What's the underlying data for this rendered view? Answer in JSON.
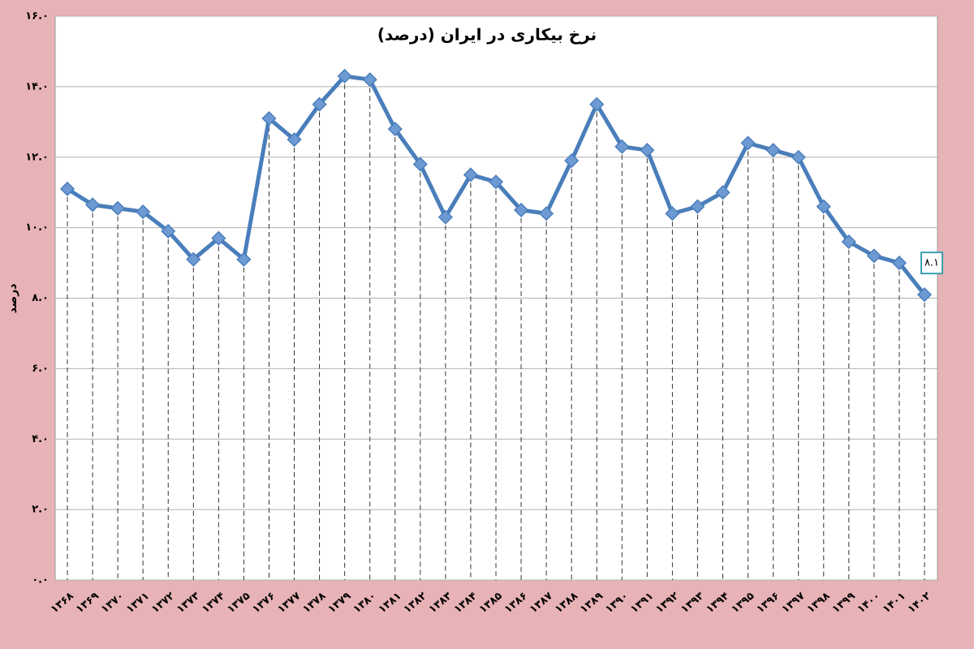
{
  "chart_data": {
    "type": "line",
    "title": "نرخ بیکاری در ایران (درصد)",
    "y_label": "درصد",
    "categories": [
      "۱۳۶۸",
      "۱۳۶۹",
      "۱۳۷۰",
      "۱۳۷۱",
      "۱۳۷۲",
      "۱۳۷۳",
      "۱۳۷۴",
      "۱۳۷۵",
      "۱۳۷۶",
      "۱۳۷۷",
      "۱۳۷۸",
      "۱۳۷۹",
      "۱۳۸۰",
      "۱۳۸۱",
      "۱۳۸۲",
      "۱۳۸۳",
      "۱۳۸۴",
      "۱۳۸۵",
      "۱۳۸۶",
      "۱۳۸۷",
      "۱۳۸۸",
      "۱۳۸۹",
      "۱۳۹۰",
      "۱۳۹۱",
      "۱۳۹۲",
      "۱۳۹۳",
      "۱۳۹۴",
      "۱۳۹۵",
      "۱۳۹۶",
      "۱۳۹۷",
      "۱۳۹۸",
      "۱۳۹۹",
      "۱۴۰۰",
      "۱۴۰۱",
      "۱۴۰۲"
    ],
    "values": [
      11.1,
      10.65,
      10.55,
      10.45,
      9.9,
      9.1,
      9.7,
      9.1,
      13.1,
      12.5,
      13.5,
      14.3,
      14.2,
      12.8,
      11.8,
      10.3,
      11.5,
      11.3,
      10.5,
      10.4,
      11.9,
      13.5,
      12.3,
      12.2,
      10.4,
      10.6,
      11.0,
      12.4,
      12.2,
      12.0,
      10.6,
      9.6,
      9.2,
      9.0,
      8.1
    ],
    "value_labels": [
      null,
      null,
      null,
      null,
      null,
      null,
      null,
      null,
      null,
      null,
      null,
      null,
      null,
      null,
      null,
      null,
      null,
      null,
      null,
      null,
      null,
      null,
      null,
      null,
      null,
      null,
      null,
      null,
      null,
      null,
      null,
      null,
      null,
      null,
      "۸.۱"
    ],
    "color": "#4a7ebb",
    "ylim": [
      0,
      16
    ],
    "yticks": [
      {
        "value": 0,
        "label": "۰.۰"
      },
      {
        "value": 2,
        "label": "۲.۰"
      },
      {
        "value": 4,
        "label": "۴.۰"
      },
      {
        "value": 6,
        "label": "۶.۰"
      },
      {
        "value": 8,
        "label": "۸.۰"
      },
      {
        "value": 10,
        "label": "۱۰.۰"
      },
      {
        "value": 12,
        "label": "۱۲.۰"
      },
      {
        "value": 14,
        "label": "۱۴.۰"
      },
      {
        "value": 16,
        "label": "۱۶.۰"
      }
    ],
    "grid": true
  }
}
